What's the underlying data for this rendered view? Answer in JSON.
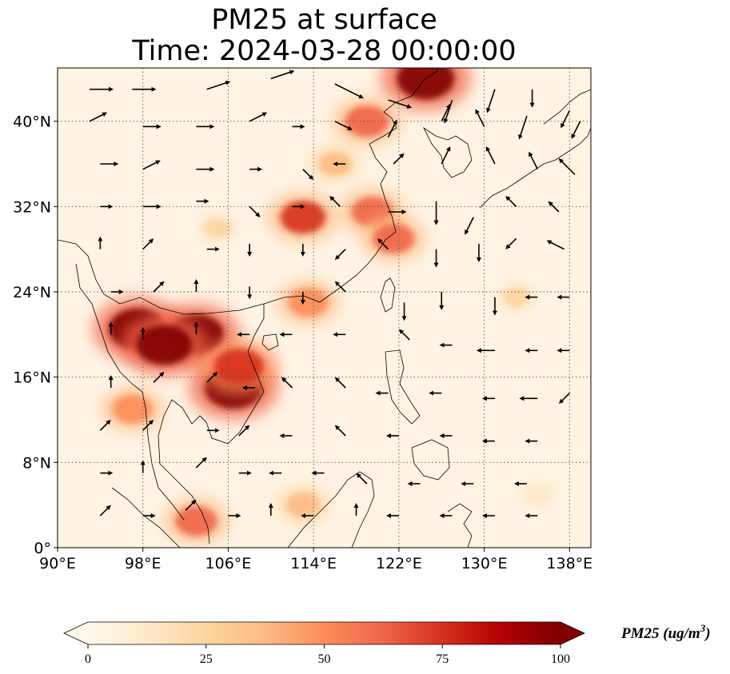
{
  "title_line1": "PM25 at surface",
  "title_line2": "Time: 2024-03-28 00:00:00",
  "map": {
    "extent": {
      "lon_min": 90,
      "lon_max": 140,
      "lat_min": 0,
      "lat_max": 45
    },
    "lat_ticks": [
      {
        "value": 0,
        "label": "0°"
      },
      {
        "value": 8,
        "label": "8°N"
      },
      {
        "value": 16,
        "label": "16°N"
      },
      {
        "value": 24,
        "label": "24°N"
      },
      {
        "value": 32,
        "label": "32°N"
      },
      {
        "value": 40,
        "label": "40°N"
      }
    ],
    "lon_ticks": [
      {
        "value": 90,
        "label": "90°E"
      },
      {
        "value": 98,
        "label": "98°E"
      },
      {
        "value": 106,
        "label": "106°E"
      },
      {
        "value": 114,
        "label": "114°E"
      },
      {
        "value": 122,
        "label": "122°E"
      },
      {
        "value": 130,
        "label": "130°E"
      },
      {
        "value": 138,
        "label": "138°E"
      }
    ],
    "gridlines": true,
    "pm25_hotspots": [
      {
        "name": "indochina-north",
        "lon": 97.5,
        "lat": 20.5,
        "value": 100
      },
      {
        "name": "laos-north",
        "lon": 103,
        "lat": 20,
        "value": 95
      },
      {
        "name": "myanmar-east",
        "lon": 100,
        "lat": 19,
        "value": 95
      },
      {
        "name": "cambodia",
        "lon": 106.5,
        "lat": 15,
        "value": 100
      },
      {
        "name": "vietnam-central",
        "lon": 107,
        "lat": 17,
        "value": 80
      },
      {
        "name": "northeast-china",
        "lon": 124.5,
        "lat": 44,
        "value": 100
      },
      {
        "name": "bohai",
        "lon": 119,
        "lat": 40,
        "value": 65
      },
      {
        "name": "yangtze",
        "lon": 119.5,
        "lat": 31.5,
        "value": 60
      },
      {
        "name": "east-china-sea",
        "lon": 121.5,
        "lat": 29,
        "value": 60
      },
      {
        "name": "hubei",
        "lon": 113,
        "lat": 31,
        "value": 70
      },
      {
        "name": "guangdong",
        "lon": 113.5,
        "lat": 23,
        "value": 55
      },
      {
        "name": "malay-peninsula",
        "lon": 103,
        "lat": 2.5,
        "value": 60
      },
      {
        "name": "myanmar-coast",
        "lon": 97,
        "lat": 13,
        "value": 55
      },
      {
        "name": "china-inland",
        "lon": 116,
        "lat": 36,
        "value": 35
      },
      {
        "name": "sichuan",
        "lon": 105,
        "lat": 30,
        "value": 25
      },
      {
        "name": "west-pacific-band",
        "lon": 133,
        "lat": 23.5,
        "value": 25
      },
      {
        "name": "borneo-west",
        "lon": 113,
        "lat": 4,
        "value": 40
      },
      {
        "name": "pacific-southeast",
        "lon": 135,
        "lat": 5,
        "value": 15
      }
    ],
    "wind_vectors": [
      [
        93,
        43,
        3,
        0
      ],
      [
        97,
        43,
        3,
        0
      ],
      [
        104,
        43,
        3,
        1
      ],
      [
        110,
        44,
        3,
        1
      ],
      [
        116,
        43.5,
        4,
        -2
      ],
      [
        121,
        42,
        3,
        -1
      ],
      [
        127,
        42,
        -1,
        -3
      ],
      [
        131,
        43,
        -1,
        -3
      ],
      [
        134.5,
        43,
        0,
        -2
      ],
      [
        138,
        41,
        -1,
        -2
      ],
      [
        93,
        40,
        2,
        1
      ],
      [
        98,
        39.5,
        2,
        0
      ],
      [
        103,
        39.5,
        2,
        0
      ],
      [
        108,
        40,
        2,
        1
      ],
      [
        112,
        39.5,
        1,
        0
      ],
      [
        116,
        40,
        2,
        -1
      ],
      [
        121,
        38.5,
        1,
        2
      ],
      [
        126,
        40,
        1,
        2
      ],
      [
        130,
        39.5,
        -1,
        2
      ],
      [
        134,
        40.5,
        -1,
        -3
      ],
      [
        139,
        40,
        -1,
        -2
      ],
      [
        94,
        36,
        2,
        0
      ],
      [
        98,
        35.5,
        2,
        1
      ],
      [
        103,
        35.5,
        2,
        0
      ],
      [
        108,
        35.5,
        1,
        0
      ],
      [
        113,
        35.5,
        1,
        -1
      ],
      [
        117,
        36,
        -1,
        0
      ],
      [
        121.5,
        36,
        1,
        1
      ],
      [
        126,
        36,
        1,
        2
      ],
      [
        131,
        36,
        -1,
        2
      ],
      [
        135,
        35.5,
        -1,
        2
      ],
      [
        138.5,
        35,
        -2,
        2
      ],
      [
        94,
        32,
        1,
        0
      ],
      [
        98,
        32,
        2,
        0
      ],
      [
        103,
        32.5,
        1,
        0
      ],
      [
        108,
        32,
        1,
        -1
      ],
      [
        112,
        32,
        1,
        0
      ],
      [
        116.5,
        32,
        -1,
        1
      ],
      [
        121,
        31.5,
        2,
        0
      ],
      [
        125.5,
        32.5,
        0,
        -3
      ],
      [
        129,
        31,
        -1,
        -2
      ],
      [
        133,
        32,
        -1,
        1
      ],
      [
        137,
        31.5,
        -1,
        1
      ],
      [
        94,
        28,
        0,
        1
      ],
      [
        98,
        28,
        1,
        1
      ],
      [
        104,
        28,
        1,
        0
      ],
      [
        108,
        28.5,
        0,
        -1
      ],
      [
        113,
        28.5,
        0,
        -1
      ],
      [
        117,
        28,
        -1,
        -1
      ],
      [
        121,
        28,
        -1,
        1
      ],
      [
        125.5,
        28,
        0,
        -2
      ],
      [
        129.5,
        28.5,
        0,
        -2
      ],
      [
        133,
        29,
        -1,
        -1
      ],
      [
        137.5,
        28,
        -2,
        1
      ],
      [
        95,
        24,
        1,
        0
      ],
      [
        99,
        24,
        1,
        1
      ],
      [
        103,
        24,
        0,
        1
      ],
      [
        108,
        24.5,
        0,
        -1
      ],
      [
        113,
        24,
        0,
        -1
      ],
      [
        117,
        24,
        -1,
        1
      ],
      [
        122.5,
        23,
        0,
        -2
      ],
      [
        126,
        24,
        0,
        -2
      ],
      [
        131,
        23.5,
        0,
        -2
      ],
      [
        135,
        23.5,
        -1,
        0
      ],
      [
        138,
        23.5,
        -1,
        0
      ],
      [
        95,
        20,
        0,
        1
      ],
      [
        98,
        19.5,
        0,
        1
      ],
      [
        103,
        20,
        0,
        1
      ],
      [
        108,
        20,
        -1,
        0
      ],
      [
        112,
        20,
        -1,
        0
      ],
      [
        117,
        20,
        -1,
        0
      ],
      [
        123,
        19.5,
        -1,
        1
      ],
      [
        127,
        19,
        -1,
        0
      ],
      [
        131,
        18.5,
        -2,
        0
      ],
      [
        135,
        18.5,
        -1,
        0
      ],
      [
        138,
        18.5,
        -1,
        0
      ],
      [
        95,
        15,
        0,
        1
      ],
      [
        99,
        15.5,
        1,
        1
      ],
      [
        104,
        15.5,
        1,
        1
      ],
      [
        108.5,
        15,
        -1,
        0
      ],
      [
        112,
        15,
        -1,
        1
      ],
      [
        117,
        15,
        -1,
        1
      ],
      [
        121,
        14.5,
        -1,
        0
      ],
      [
        126,
        14.5,
        -1,
        0
      ],
      [
        131,
        14,
        -1,
        0
      ],
      [
        135,
        14,
        -2,
        0
      ],
      [
        138,
        14.5,
        -1,
        -1
      ],
      [
        94,
        11,
        1,
        1
      ],
      [
        98,
        11,
        1,
        1
      ],
      [
        104,
        11,
        1,
        0
      ],
      [
        107,
        10.5,
        1,
        1
      ],
      [
        112,
        10.5,
        -1,
        0
      ],
      [
        117,
        10.5,
        -1,
        1
      ],
      [
        122,
        10.5,
        -1,
        0
      ],
      [
        127,
        10.5,
        -1,
        0
      ],
      [
        131,
        10,
        -1,
        0
      ],
      [
        135,
        10,
        -1,
        0
      ],
      [
        94,
        7,
        1,
        0
      ],
      [
        98,
        7,
        0,
        1
      ],
      [
        103,
        7.5,
        1,
        1
      ],
      [
        107,
        7,
        1,
        0
      ],
      [
        111,
        7,
        -1,
        0
      ],
      [
        115,
        7,
        -1,
        0
      ],
      [
        119,
        6,
        -1,
        1
      ],
      [
        124,
        6,
        -1,
        0
      ],
      [
        129,
        6,
        -1,
        0
      ],
      [
        134,
        6,
        -1,
        0
      ],
      [
        94,
        3,
        1,
        1
      ],
      [
        98,
        3,
        1,
        0
      ],
      [
        102,
        3.5,
        1,
        1
      ],
      [
        106,
        3,
        1,
        0
      ],
      [
        110,
        3,
        0,
        1
      ],
      [
        114,
        3,
        -1,
        0
      ],
      [
        118,
        3,
        0,
        1
      ],
      [
        122,
        3,
        -1,
        0
      ],
      [
        127,
        3,
        -1,
        0
      ],
      [
        131,
        3,
        -1,
        0
      ],
      [
        135,
        3,
        -1,
        0
      ]
    ]
  },
  "colorbar": {
    "label": "PM25 (ug/m³)",
    "label_base": "PM25 (ug/m",
    "label_sup": "3",
    "label_end": ")",
    "colormap": "OrRd",
    "min": 0,
    "max": 100,
    "ticks": [
      "0",
      "25",
      "50",
      "75",
      "100"
    ],
    "extend": "both",
    "colors": [
      "#fff7ec",
      "#fee8c8",
      "#fdd49e",
      "#fdbb84",
      "#fc8d59",
      "#ef6548",
      "#d7301f",
      "#b30000",
      "#7f0000"
    ]
  }
}
